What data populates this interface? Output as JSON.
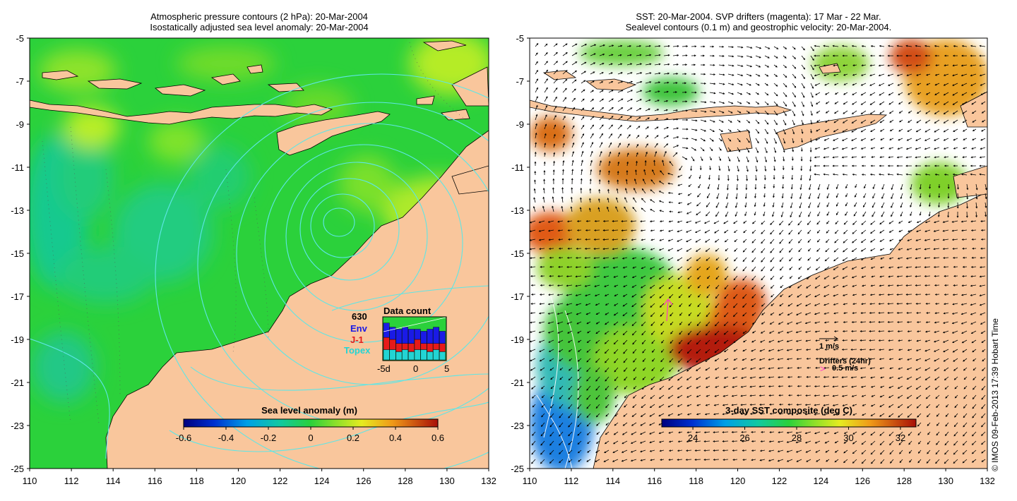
{
  "left_panel": {
    "title_line1": "Atmospheric pressure contours (2 hPa): 20-Mar-2004",
    "title_line2": "Isostatically adjusted sea level anomaly: 20-Mar-2004",
    "colorbar": {
      "title": "Sea level anomaly (m)",
      "ticks": [
        "-0.6",
        "-0.4",
        "-0.2",
        "0",
        "0.2",
        "0.4",
        "0.6"
      ],
      "range": [
        -0.6,
        0.6
      ]
    },
    "data_count": {
      "title": "Data count",
      "max_label": "630",
      "legend": [
        {
          "name": "Env",
          "color": "#1a1ae6"
        },
        {
          "name": "J-1",
          "color": "#e61a1a"
        },
        {
          "name": "Topex",
          "color": "#22d4d4"
        }
      ],
      "x_labels": [
        "-5d",
        "0",
        "5"
      ],
      "bars": [
        {
          "topex": 0.25,
          "j1": 0.3,
          "env": 0.35
        },
        {
          "topex": 0.25,
          "j1": 0.25,
          "env": 0.3
        },
        {
          "topex": 0.2,
          "j1": 0.2,
          "env": 0.35
        },
        {
          "topex": 0.25,
          "j1": 0.15,
          "env": 0.4
        },
        {
          "topex": 0.2,
          "j1": 0.2,
          "env": 0.35
        },
        {
          "topex": 0.25,
          "j1": 0.25,
          "env": 0.25
        },
        {
          "topex": 0.25,
          "j1": 0.15,
          "env": 0.3
        },
        {
          "topex": 0.2,
          "j1": 0.2,
          "env": 0.35
        },
        {
          "topex": 0.25,
          "j1": 0.15,
          "env": 0.4
        },
        {
          "topex": 0.2,
          "j1": 0.2,
          "env": 0.3
        }
      ]
    }
  },
  "right_panel": {
    "title_line1": "SST: 20-Mar-2004. SVP drifters (magenta): 17 Mar - 22 Mar.",
    "title_line2": "Sealevel contours (0.1 m) and geostrophic velocity: 20-Mar-2004.",
    "colorbar": {
      "title": "3-day SST composite (deg C)",
      "ticks": [
        "24",
        "26",
        "28",
        "30",
        "32"
      ],
      "range": [
        22.8,
        32.6
      ]
    },
    "velocity_legend": "1 m/s",
    "drifter_legend": "Drifters (24hr)",
    "drifter_speed": "0.5 m/s",
    "drifter_marker": ">"
  },
  "axes": {
    "lat_labels": [
      "-5",
      "-7",
      "-9",
      "-11",
      "-13",
      "-15",
      "-17",
      "-19",
      "-21",
      "-23",
      "-25"
    ],
    "lon_labels": [
      "110",
      "112",
      "114",
      "116",
      "118",
      "120",
      "122",
      "124",
      "126",
      "128",
      "130",
      "132"
    ],
    "lat_range": [
      -25,
      -5
    ],
    "lon_range": [
      110,
      132
    ]
  },
  "credit": "© IMOS 09-Feb-2013 17:39 Hobart Time",
  "colors": {
    "land": "#f9c69c",
    "sla_base": "#2bd13b",
    "pressure_contour": "#5ee6e6",
    "drifter": "#ff33cc"
  }
}
